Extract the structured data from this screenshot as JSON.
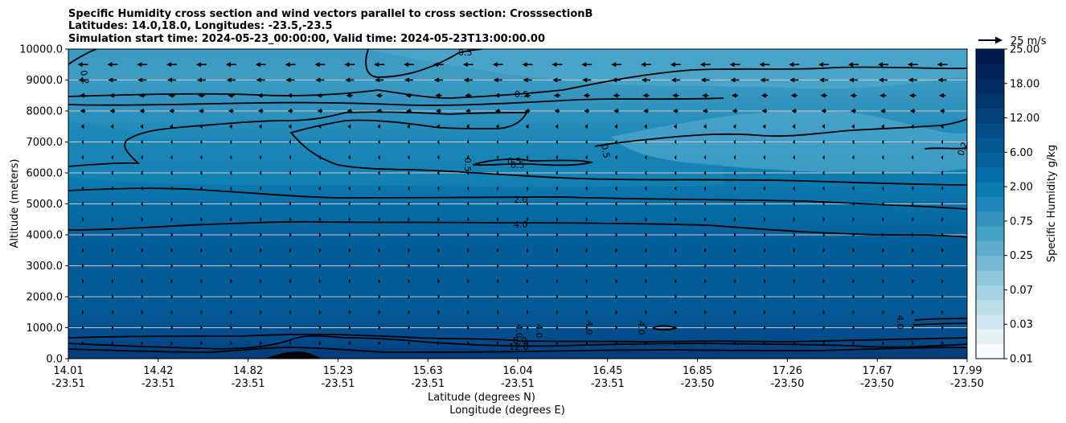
{
  "chart_data": {
    "type": "heatmap",
    "title_lines": [
      "Specific Humidity cross section and wind vectors parallel to cross section: CrosssectionB",
      "Latitudes: 14.0,18.0, Longitudes: -23.5,-23.5",
      "Simulation start time: 2024-05-23_00:00:00, Valid time: 2024-05-23T13:00:00.00"
    ],
    "xlabel_lat": "Latitude (degrees N)",
    "xlabel_lon": "Longitude (degrees E)",
    "ylabel": "Altitude (meters)",
    "x_ticks": [
      {
        "lat": "14.01",
        "lon": "-23.51"
      },
      {
        "lat": "14.42",
        "lon": "-23.51"
      },
      {
        "lat": "14.82",
        "lon": "-23.51"
      },
      {
        "lat": "15.23",
        "lon": "-23.51"
      },
      {
        "lat": "15.63",
        "lon": "-23.51"
      },
      {
        "lat": "16.04",
        "lon": "-23.51"
      },
      {
        "lat": "16.45",
        "lon": "-23.51"
      },
      {
        "lat": "16.85",
        "lon": "-23.50"
      },
      {
        "lat": "17.26",
        "lon": "-23.50"
      },
      {
        "lat": "17.67",
        "lon": "-23.50"
      },
      {
        "lat": "17.99",
        "lon": "-23.50"
      }
    ],
    "y_ticks": [
      "0.0",
      "1000.0",
      "2000.0",
      "3000.0",
      "4000.0",
      "5000.0",
      "6000.0",
      "7000.0",
      "8000.0",
      "9000.0",
      "10000.0"
    ],
    "ylim": [
      0,
      10000
    ],
    "grid": "horizontal",
    "colorbar_label": "Specific Humidity g/kg",
    "colorbar_ticks": [
      "0.01",
      "0.03",
      "0.07",
      "0.25",
      "0.75",
      "2.00",
      "6.00",
      "12.00",
      "18.00",
      "25.00"
    ],
    "colorbar_colors": [
      "#f7fbfd",
      "#e4f1f5",
      "#d0e8f0",
      "#bcdee9",
      "#a6d2e3",
      "#8fc6dc",
      "#76b9d5",
      "#5eaccd",
      "#47a0c6",
      "#3494bf",
      "#1f88b8",
      "#0f7cb1",
      "#056fa7",
      "#04639c",
      "#045891",
      "#044d86",
      "#03427a",
      "#02376e",
      "#022d62",
      "#012456",
      "#011c4c"
    ],
    "quiver_key": {
      "label": "25 m/s"
    },
    "contour_labels": [
      "0.2",
      "0.5",
      "0.5",
      "0.5",
      "0.5",
      "0.5",
      "0.5",
      "2.0",
      "4.0",
      "4.0",
      "4.0",
      "4.0",
      "4.0",
      "4.0",
      "8.0",
      "12.0",
      "0.2",
      "4.0"
    ],
    "wind_rows_m": [
      500,
      1000,
      1500,
      2000,
      2500,
      3000,
      3500,
      4000,
      4500,
      5000,
      5500,
      6000,
      6500,
      7000,
      7500,
      8000,
      8500,
      9000,
      9500
    ],
    "wind_u_ms": [
      3,
      2,
      2,
      1.5,
      1.5,
      1.5,
      1,
      1,
      0.5,
      -0.5,
      -0.8,
      -1,
      -2,
      -3,
      -5,
      -7,
      -9,
      -12,
      -14
    ]
  }
}
